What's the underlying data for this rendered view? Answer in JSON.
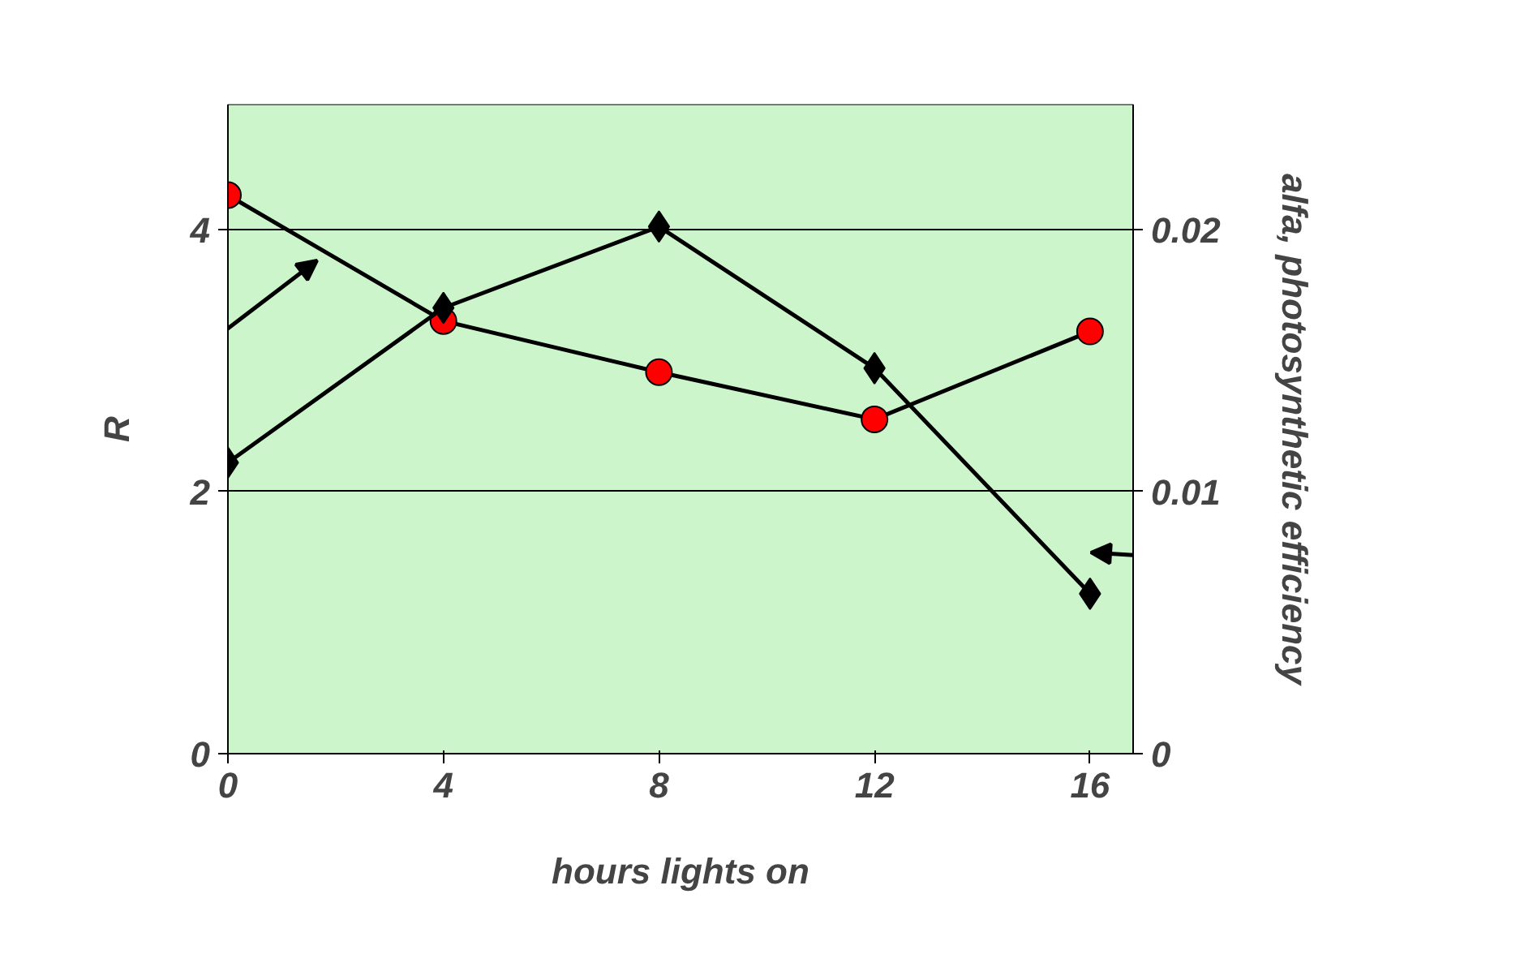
{
  "chart_data": {
    "type": "line",
    "xlabel": "hours lights on",
    "ylabel": "R",
    "y2label": "alfa, photosynthetic efficiency",
    "x": [
      0,
      4,
      8,
      12,
      16
    ],
    "series": [
      {
        "color": "#ff0000",
        "marker": "circle",
        "values": [
          4.26,
          3.3,
          2.91,
          2.55,
          3.22
        ]
      },
      {
        "color": "#000000",
        "marker": "diamond",
        "axis": "y2",
        "values": [
          0.0111,
          0.017,
          0.0201,
          0.0147,
          0.0061
        ]
      }
    ],
    "xlim": [
      0,
      16.8
    ],
    "xticks": [
      0,
      4,
      8,
      12,
      16
    ],
    "ylim": [
      0,
      4.95
    ],
    "yticks": [
      0,
      2,
      4
    ],
    "y2lim": [
      0,
      0.02475
    ],
    "y2ticks": [
      0,
      0.01,
      0.02
    ],
    "grid": "y"
  }
}
